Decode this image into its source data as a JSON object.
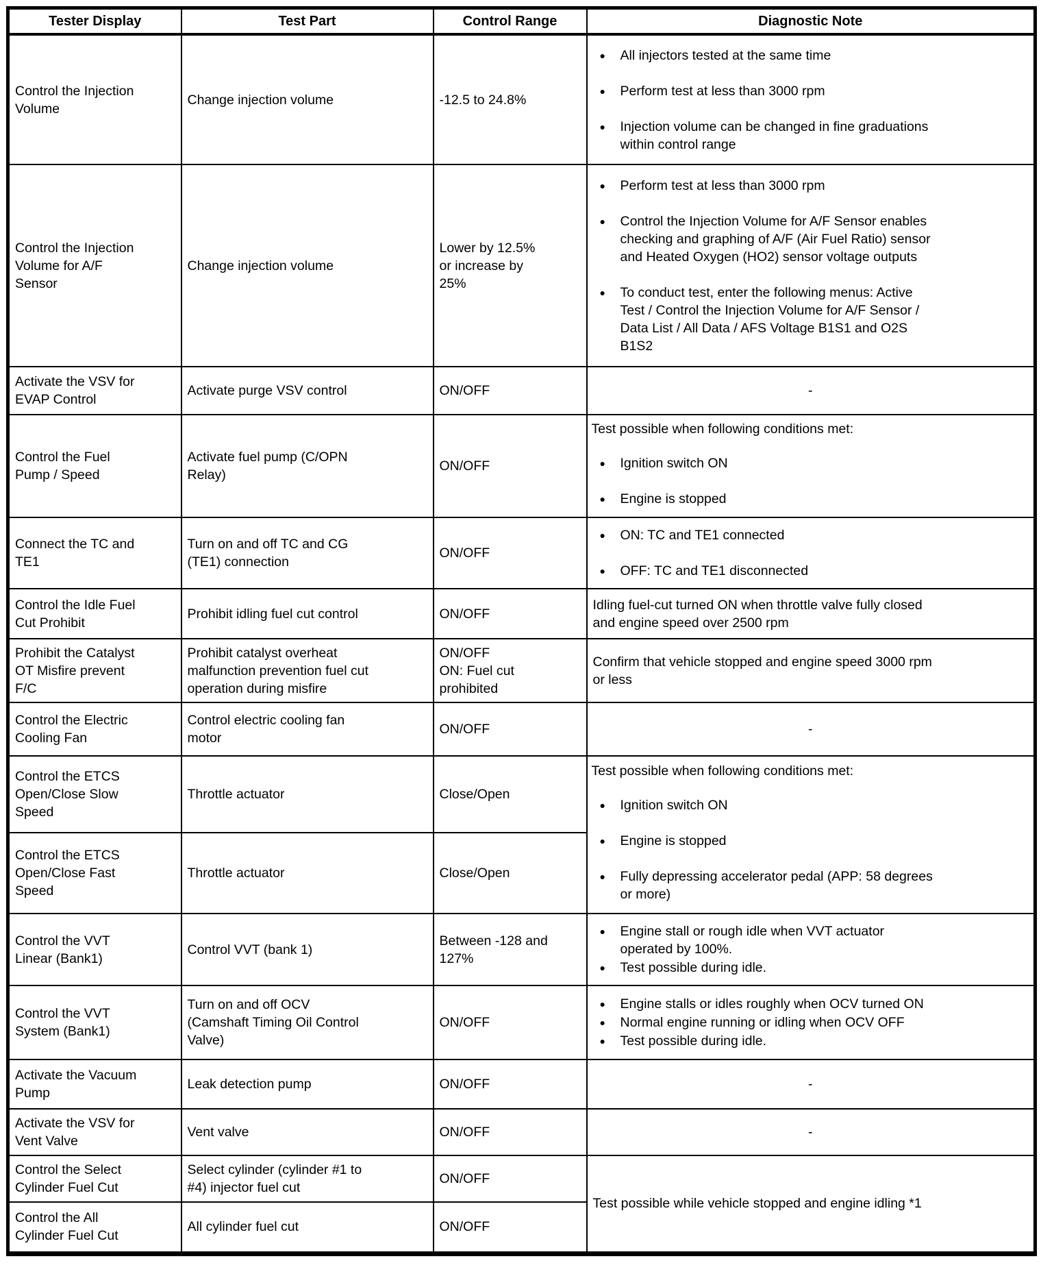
{
  "glyphs": {
    "bullet": "●"
  },
  "table": {
    "headers": {
      "tester_display": "Tester Display",
      "test_part": "Test Part",
      "control_range": "Control Range",
      "diagnostic_note": "Diagnostic Note"
    },
    "rows": [
      {
        "tester_display": "Control the Injection\nVolume",
        "test_part": "Change injection volume",
        "control_range": "-12.5 to 24.8%",
        "note": {
          "items": [
            "All injectors tested at the same time",
            "Perform test at less than 3000 rpm",
            "Injection volume can be changed in fine graduations\nwithin control range"
          ]
        }
      },
      {
        "tester_display": "Control the Injection\nVolume for A/F\nSensor",
        "test_part": "Change injection volume",
        "control_range": "Lower by 12.5%\nor increase by\n25%",
        "note": {
          "items": [
            "Perform test at less than 3000 rpm",
            "Control the Injection Volume for A/F Sensor enables\nchecking and graphing of A/F (Air Fuel Ratio) sensor\nand Heated Oxygen (HO2) sensor voltage outputs",
            "To conduct test, enter the following menus: Active\nTest / Control the Injection Volume for A/F Sensor /\nData List / All Data / AFS Voltage B1S1 and O2S\nB1S2"
          ]
        }
      },
      {
        "tester_display": "Activate the VSV for\nEVAP Control",
        "test_part": "Activate purge VSV control",
        "control_range": "ON/OFF",
        "note": {
          "dash": "-"
        }
      },
      {
        "tester_display": "Control the Fuel\nPump / Speed",
        "test_part": "Activate fuel pump (C/OPN\nRelay)",
        "control_range": "ON/OFF",
        "note": {
          "intro": "Test possible when following conditions met:",
          "items": [
            "Ignition switch ON",
            "Engine is stopped"
          ]
        }
      },
      {
        "tester_display": "Connect the TC and\nTE1",
        "test_part": "Turn on and off TC and CG\n(TE1) connection",
        "control_range": "ON/OFF",
        "note": {
          "items": [
            "ON: TC and TE1 connected",
            "OFF: TC and TE1 disconnected"
          ]
        }
      },
      {
        "tester_display": "Control the Idle Fuel\nCut Prohibit",
        "test_part": "Prohibit idling fuel cut control",
        "control_range": "ON/OFF",
        "note": {
          "text": "Idling fuel-cut turned ON when throttle valve fully closed\nand engine speed over 2500 rpm"
        }
      },
      {
        "tester_display": "Prohibit the Catalyst\nOT Misfire prevent\nF/C",
        "test_part": "Prohibit catalyst overheat\nmalfunction prevention fuel cut\noperation during misfire",
        "control_range": "ON/OFF\nON: Fuel cut\nprohibited",
        "note": {
          "text": "Confirm that vehicle stopped and engine speed 3000 rpm\nor less"
        }
      },
      {
        "tester_display": "Control the Electric\nCooling Fan",
        "test_part": "Control electric cooling fan\nmotor",
        "control_range": "ON/OFF",
        "note": {
          "dash": "-"
        }
      },
      {
        "tester_display": "Control the ETCS\nOpen/Close Slow\nSpeed",
        "test_part": "Throttle actuator",
        "control_range": "Close/Open",
        "note": {
          "intro": "Test possible when following conditions met:",
          "items": [
            "Ignition switch ON",
            "Engine is stopped",
            "Fully depressing accelerator pedal (APP: 58 degrees\nor more)"
          ]
        }
      },
      {
        "tester_display": "Control the ETCS\nOpen/Close Fast\nSpeed",
        "test_part": "Throttle actuator",
        "control_range": "Close/Open"
      },
      {
        "tester_display": "Control the VVT\nLinear (Bank1)",
        "test_part": "Control VVT (bank 1)",
        "control_range": "Between -128 and\n127%",
        "note": {
          "items": [
            "Engine stall or rough idle when VVT actuator\noperated by 100%.",
            "Test possible during idle."
          ]
        }
      },
      {
        "tester_display": "Control the VVT\nSystem (Bank1)",
        "test_part": "Turn on and off OCV\n(Camshaft Timing Oil Control\nValve)",
        "control_range": "ON/OFF",
        "note": {
          "items": [
            "Engine stalls or idles roughly when OCV turned ON",
            "Normal engine running or idling when OCV OFF",
            "Test possible during idle."
          ]
        }
      },
      {
        "tester_display": "Activate the Vacuum\nPump",
        "test_part": "Leak detection pump",
        "control_range": "ON/OFF",
        "note": {
          "dash": "-"
        }
      },
      {
        "tester_display": "Activate the VSV for\nVent Valve",
        "test_part": "Vent valve",
        "control_range": "ON/OFF",
        "note": {
          "dash": "-"
        }
      },
      {
        "tester_display": "Control the Select\nCylinder Fuel Cut",
        "test_part": "Select cylinder (cylinder #1 to\n#4) injector fuel cut",
        "control_range": "ON/OFF",
        "note": {
          "text": "Test possible while vehicle stopped and engine idling *1"
        }
      },
      {
        "tester_display": "Control the All\nCylinder Fuel Cut",
        "test_part": "All cylinder fuel cut",
        "control_range": "ON/OFF"
      }
    ]
  }
}
